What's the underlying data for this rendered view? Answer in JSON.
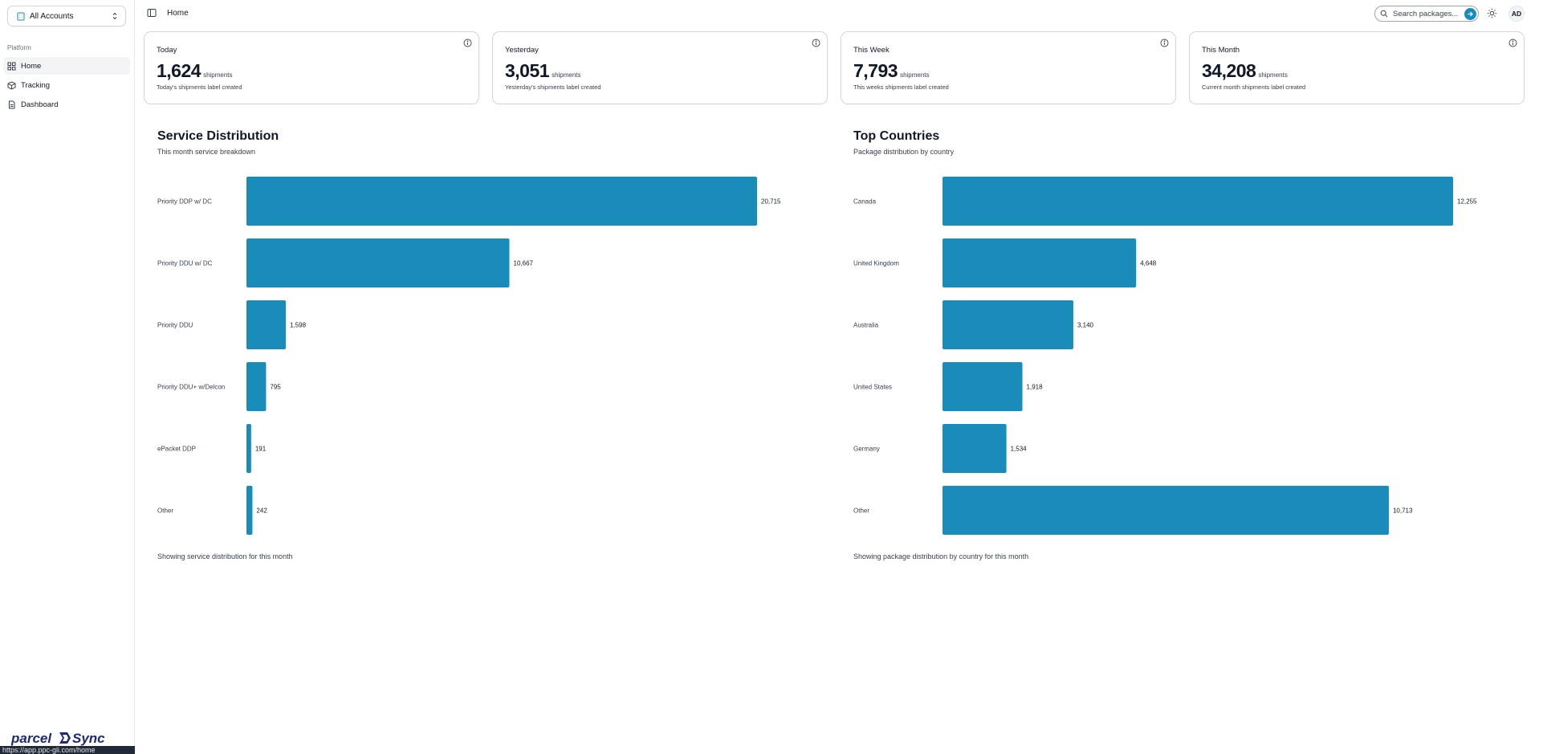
{
  "sidebar": {
    "account_switcher": "All Accounts",
    "section_label": "Platform",
    "items": [
      {
        "label": "Home",
        "icon": "grid-icon"
      },
      {
        "label": "Tracking",
        "icon": "package-icon"
      },
      {
        "label": "Dashboard",
        "icon": "file-icon"
      }
    ],
    "logo_text": "parcelSync",
    "status_url": "https://app.ppc-gli.com/home"
  },
  "header": {
    "breadcrumb": "Home",
    "search_placeholder": "Search packages...",
    "avatar_initials": "AD"
  },
  "stats": [
    {
      "title": "Today",
      "value": "1,624",
      "unit": "shipments",
      "description": "Today's shipments label created"
    },
    {
      "title": "Yesterday",
      "value": "3,051",
      "unit": "shipments",
      "description": "Yesterday's shipments label created"
    },
    {
      "title": "This Week",
      "value": "7,793",
      "unit": "shipments",
      "description": "This weeks shipments label created"
    },
    {
      "title": "This Month",
      "value": "34,208",
      "unit": "shipments",
      "description": "Current month shipments label created"
    }
  ],
  "colors": {
    "accent": "#1a8cba"
  },
  "chart_data": [
    {
      "type": "bar",
      "orientation": "horizontal",
      "title": "Service Distribution",
      "subtitle": "This month service breakdown",
      "footer": "Showing service distribution for this month",
      "categories": [
        "Priority DDP w/ DC",
        "Priority DDU w/ DC",
        "Priority DDU",
        "Priority DDU+ w/Delcon",
        "ePacket DDP",
        "Other"
      ],
      "values": [
        20715,
        10667,
        1598,
        795,
        191,
        242
      ],
      "value_labels": [
        "20,715",
        "10,667",
        "1,598",
        "795",
        "191",
        "242"
      ],
      "xlim": [
        0,
        20715
      ],
      "grid": false
    },
    {
      "type": "bar",
      "orientation": "horizontal",
      "title": "Top Countries",
      "subtitle": "Package distribution by country",
      "footer": "Showing package distribution by country for this month",
      "categories": [
        "Canada",
        "United Kingdom",
        "Australia",
        "United States",
        "Germany",
        "Other"
      ],
      "values": [
        12255,
        4648,
        3140,
        1918,
        1534,
        10713
      ],
      "value_labels": [
        "12,255",
        "4,648",
        "3,140",
        "1,918",
        "1,534",
        "10,713"
      ],
      "xlim": [
        0,
        12255
      ],
      "grid": false
    }
  ]
}
